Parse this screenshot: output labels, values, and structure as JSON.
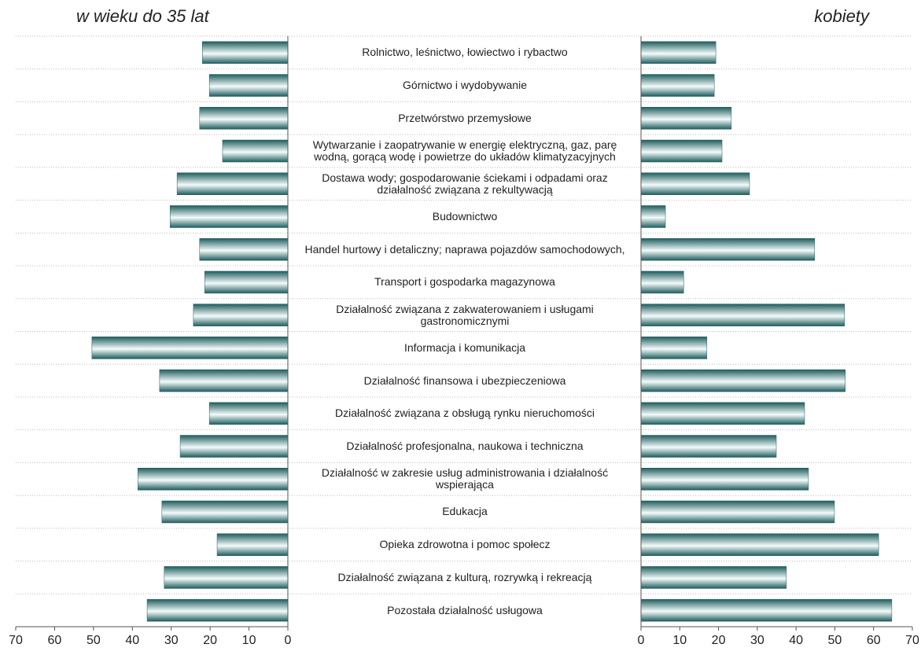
{
  "chart_data": {
    "type": "bar",
    "categories": [
      "Rolnictwo, leśnictwo, łowiectwo i rybactwo",
      "Górnictwo i wydobywanie",
      "Przetwórstwo przemysłowe",
      "Wytwarzanie i zaopatrywanie w energię elektryczną, gaz, parę wodną, gorącą wodę i powietrze do układów klimatyzacyjnych",
      "Dostawa wody; gospodarowanie ściekami i odpadami oraz działalność związana z rekultywacją",
      "Budownictwo",
      "Handel hurtowy i detaliczny; naprawa pojazdów samochodowych,",
      "Transport i gospodarka magazynowa",
      "Działalność związana z zakwaterowaniem i usługami gastronomicznymi",
      "Informacja i komunikacja",
      "Działalność finansowa i ubezpieczeniowa",
      "Działalność związana z obsługą rynku nieruchomości",
      "Działalność profesjonalna, naukowa i techniczna",
      "Działalność w zakresie usług administrowania i działalność wspierająca",
      "Edukacja",
      "Opieka zdrowotna i pomoc społecz",
      "Działalność związana z kulturą, rozrywką i rekreacją",
      "Pozostała działalność usługowa"
    ],
    "series": [
      {
        "name": "w wieku do 35 lat",
        "color": "#1f5d5d",
        "values": [
          22,
          20.2,
          22.7,
          16.8,
          28.5,
          30.3,
          22.7,
          21.4,
          24.3,
          50.4,
          33,
          20.2,
          27.7,
          38.6,
          32.4,
          18.2,
          31.8,
          36.2
        ]
      },
      {
        "name": "kobiety",
        "color": "#1f5d5d",
        "values": [
          19.3,
          18.9,
          23.3,
          20.9,
          28,
          6.3,
          44.8,
          11,
          52.5,
          17,
          52.7,
          42.2,
          34.9,
          43.2,
          49.9,
          61.3,
          37.5,
          64.7
        ]
      }
    ],
    "xlim": [
      0,
      70
    ],
    "xticks": [
      0,
      10,
      20,
      30,
      40,
      50,
      60,
      70
    ],
    "grid": true
  }
}
